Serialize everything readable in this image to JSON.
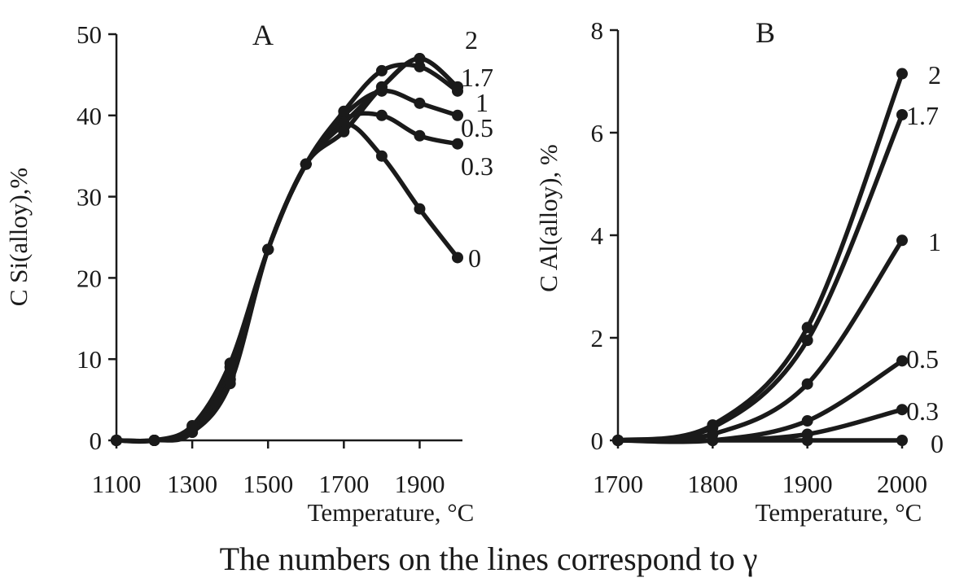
{
  "caption": "The numbers on the lines correspond to γ",
  "colors": {
    "ink": "#1a1a1a",
    "background": "#ffffff"
  },
  "chart_data": [
    {
      "type": "line",
      "panel": "A",
      "xlabel": "Temperature, °C",
      "ylabel": "C Si(alloy),%",
      "xlim": [
        1100,
        2000
      ],
      "ylim": [
        0,
        50
      ],
      "x_ticks": [
        1100,
        1300,
        1500,
        1700,
        1900
      ],
      "y_ticks": [
        0,
        10,
        20,
        30,
        40,
        50
      ],
      "grid": false,
      "x": [
        1100,
        1200,
        1300,
        1400,
        1500,
        1600,
        1700,
        1800,
        1900,
        2000
      ],
      "series": [
        {
          "name": "0",
          "values": [
            0,
            0,
            1.5,
            8,
            23.5,
            34,
            39,
            35,
            28.5,
            22.5
          ]
        },
        {
          "name": "0.3",
          "values": [
            0,
            0,
            1.2,
            7.5,
            23.5,
            34,
            39.5,
            40,
            37.5,
            36.5
          ]
        },
        {
          "name": "0.5",
          "values": [
            0,
            0,
            1.2,
            7.5,
            23.5,
            34,
            40,
            43,
            41.5,
            40
          ]
        },
        {
          "name": "1",
          "values": [
            0,
            0,
            1,
            7,
            23.5,
            34,
            40.5,
            45.5,
            46,
            43
          ]
        },
        {
          "name": "1.7",
          "values": [
            0,
            0,
            1,
            9,
            23.5,
            34,
            39,
            43.5,
            47,
            43.5
          ]
        },
        {
          "name": "2",
          "values": [
            0,
            0,
            1.8,
            9.5,
            23.5,
            34,
            38,
            43.5,
            47,
            43.5
          ]
        }
      ]
    },
    {
      "type": "line",
      "panel": "B",
      "xlabel": "Temperature, °C",
      "ylabel": "C Al(alloy), %",
      "xlim": [
        1700,
        2000
      ],
      "ylim": [
        0,
        8
      ],
      "x_ticks": [
        1700,
        1800,
        1900,
        2000
      ],
      "y_ticks": [
        0,
        2,
        4,
        6,
        8
      ],
      "grid": false,
      "x": [
        1700,
        1800,
        1900,
        2000
      ],
      "series": [
        {
          "name": "0",
          "values": [
            0,
            0,
            0,
            0
          ]
        },
        {
          "name": "0.3",
          "values": [
            0,
            0,
            0.12,
            0.6
          ]
        },
        {
          "name": "0.5",
          "values": [
            0,
            0,
            0.38,
            1.55
          ]
        },
        {
          "name": "1",
          "values": [
            0,
            0.12,
            1.1,
            3.9
          ]
        },
        {
          "name": "1.7",
          "values": [
            0,
            0.25,
            1.95,
            6.35
          ]
        },
        {
          "name": "2",
          "values": [
            0,
            0.3,
            2.2,
            7.15
          ]
        }
      ]
    }
  ]
}
